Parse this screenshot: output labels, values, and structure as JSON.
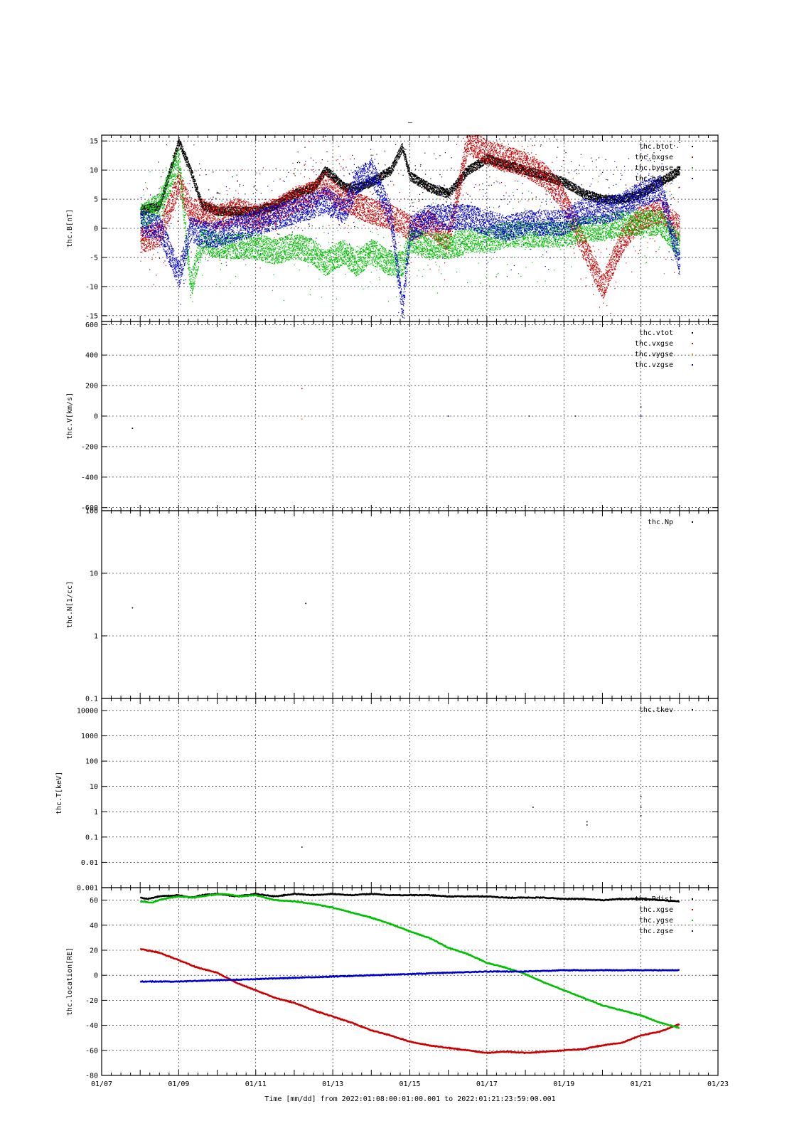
{
  "title": "–",
  "xaxis": {
    "title": "Time [mm/dd]  from 2022:01:08:00:01:00.001  to  2022:01:21:23:59:00.001",
    "tick_labels": [
      "01/07",
      "01/09",
      "01/11",
      "01/13",
      "01/15",
      "01/17",
      "01/19",
      "01/21",
      "01/23"
    ],
    "tick_days": [
      7,
      9,
      11,
      13,
      15,
      17,
      19,
      21,
      23
    ],
    "range_days": [
      7,
      23
    ],
    "data_range_days": [
      8.0,
      22.0
    ]
  },
  "colors": {
    "black": "#000000",
    "red": "#cc0000",
    "green": "#00c000",
    "blue": "#0000cc",
    "orange": "#ff8c00"
  },
  "chart_data": [
    {
      "type": "scatter",
      "ylabel": "thc.B[nT]",
      "yscale": "linear",
      "ylim": [
        -16,
        16
      ],
      "yticks": [
        -15,
        -10,
        -5,
        0,
        5,
        10,
        15
      ],
      "ytick_labels": [
        "-15",
        "-10",
        "-5",
        "0",
        "5",
        "10",
        "15"
      ],
      "legend_position": "top-right",
      "series": [
        {
          "name": "thc.btot",
          "color": "#000000",
          "x": [
            8.0,
            8.5,
            9.0,
            9.3,
            9.6,
            10.0,
            10.5,
            11.0,
            11.5,
            12.0,
            12.5,
            12.8,
            13.0,
            13.3,
            13.6,
            14.0,
            14.5,
            14.8,
            15.0,
            15.5,
            16.0,
            16.5,
            17.0,
            17.5,
            18.0,
            18.5,
            19.0,
            19.5,
            20.0,
            20.5,
            21.0,
            21.5,
            22.0
          ],
          "y": [
            3,
            4,
            15,
            10,
            4,
            3,
            3,
            3,
            4,
            6,
            7,
            10,
            9,
            7,
            7,
            8,
            10,
            14,
            9,
            7,
            6,
            10,
            12,
            11,
            10,
            9,
            8,
            6,
            5,
            5,
            6,
            8,
            10
          ]
        },
        {
          "name": "thc.bxgse",
          "color": "#cc0000",
          "x": [
            8.0,
            8.5,
            9.0,
            9.3,
            9.6,
            10.0,
            10.5,
            11.0,
            11.5,
            12.0,
            12.5,
            12.8,
            13.0,
            13.3,
            13.6,
            14.0,
            14.5,
            14.8,
            15.0,
            15.5,
            16.0,
            16.5,
            17.0,
            17.5,
            18.0,
            18.5,
            19.0,
            19.5,
            20.0,
            20.5,
            21.0,
            21.5,
            22.0
          ],
          "y": [
            -2,
            -1,
            8,
            3,
            3,
            2,
            3,
            2,
            3,
            5,
            6,
            8,
            6,
            5,
            4,
            3,
            2,
            1,
            0,
            1,
            -2,
            15,
            13,
            12,
            11,
            9,
            5,
            -3,
            -10,
            -2,
            2,
            3,
            0
          ]
        },
        {
          "name": "thc.bygse",
          "color": "#00c000",
          "x": [
            8.0,
            8.5,
            9.0,
            9.3,
            9.6,
            10.0,
            10.5,
            11.0,
            11.5,
            12.0,
            12.5,
            12.8,
            13.0,
            13.3,
            13.6,
            14.0,
            14.5,
            14.8,
            15.0,
            15.5,
            16.0,
            16.5,
            17.0,
            17.5,
            18.0,
            18.5,
            19.0,
            19.5,
            20.0,
            20.5,
            21.0,
            21.5,
            22.0
          ],
          "y": [
            2,
            4,
            12,
            -10,
            -2,
            -3,
            -3,
            -3,
            -4,
            -3,
            -4,
            -6,
            -5,
            -4,
            -6,
            -4,
            -6,
            -6,
            -2,
            -3,
            -3,
            -2,
            -2,
            -1,
            -1,
            -1,
            -1,
            0,
            0,
            1,
            1,
            1,
            -3
          ]
        },
        {
          "name": "thc.bzgse",
          "color": "#0000cc",
          "x": [
            8.0,
            8.5,
            9.0,
            9.3,
            9.6,
            10.0,
            10.5,
            11.0,
            11.5,
            12.0,
            12.5,
            12.8,
            13.0,
            13.3,
            13.6,
            14.0,
            14.5,
            14.8,
            15.0,
            15.5,
            16.0,
            16.5,
            17.0,
            17.5,
            18.0,
            18.5,
            19.0,
            19.5,
            20.0,
            20.5,
            21.0,
            21.5,
            22.0
          ],
          "y": [
            1,
            0,
            -8,
            0,
            -1,
            -1,
            0,
            1,
            2,
            3,
            4,
            5,
            4,
            3,
            8,
            10,
            2,
            -14,
            0,
            2,
            2,
            2,
            1,
            0,
            1,
            1,
            1,
            3,
            3,
            4,
            6,
            7,
            -6
          ]
        }
      ]
    },
    {
      "type": "scatter",
      "ylabel": "thc.V[km/s]",
      "yscale": "linear",
      "ylim": [
        -620,
        620
      ],
      "yticks": [
        -600,
        -400,
        -200,
        0,
        200,
        400,
        600
      ],
      "ytick_labels": [
        "-600",
        "-400",
        "-200",
        "0",
        "200",
        "400",
        "600"
      ],
      "legend_position": "top-right",
      "series": [
        {
          "name": "thc.vtot",
          "color": "#000000",
          "x": [
            7.8,
            21.0,
            21.0
          ],
          "y": [
            -80,
            0,
            60
          ]
        },
        {
          "name": "thc.vxgse",
          "color": "#cc0000",
          "x": [
            12.2
          ],
          "y": [
            180
          ]
        },
        {
          "name": "thc.vygse",
          "color": "#ff8c00",
          "x": [
            12.2
          ],
          "y": [
            -20
          ]
        },
        {
          "name": "thc.vzgse",
          "color": "#0000cc",
          "x": [
            16.0,
            18.1,
            19.3,
            21.0
          ],
          "y": [
            0,
            0,
            0,
            0
          ]
        }
      ]
    },
    {
      "type": "scatter",
      "ylabel": "thc.N[1/cc]",
      "yscale": "log",
      "ylim": [
        0.1,
        100
      ],
      "yticks": [
        0.1,
        1,
        10,
        100
      ],
      "ytick_labels": [
        "0.1",
        "1",
        "10",
        "100"
      ],
      "legend_position": "top-right",
      "series": [
        {
          "name": "thc.Np",
          "color": "#000000",
          "x": [
            7.8,
            12.3
          ],
          "y": [
            2.8,
            3.3
          ]
        }
      ]
    },
    {
      "type": "scatter",
      "ylabel": "thc.T[keV]",
      "yscale": "log",
      "ylim": [
        0.001,
        30000
      ],
      "yticks": [
        0.001,
        0.01,
        0.1,
        1,
        10,
        100,
        1000,
        10000
      ],
      "ytick_labels": [
        "0.001",
        "0.01",
        "0.1",
        "1",
        "10",
        "100",
        "1000",
        "10000"
      ],
      "legend_position": "top-right",
      "series": [
        {
          "name": "thc.tkev",
          "color": "#000000",
          "x": [
            12.2,
            18.2,
            19.6,
            19.6,
            21.0,
            21.0,
            21.0
          ],
          "y": [
            0.04,
            1.5,
            0.3,
            0.4,
            4,
            1.5,
            0.7
          ]
        }
      ]
    },
    {
      "type": "line",
      "ylabel": "thc.location[RE]",
      "yscale": "linear",
      "ylim": [
        -80,
        70
      ],
      "yticks": [
        -80,
        -60,
        -40,
        -20,
        0,
        20,
        40,
        60
      ],
      "ytick_labels": [
        "-80",
        "-60",
        "-40",
        "-20",
        "0",
        "20",
        "40",
        "60"
      ],
      "legend_position": "top-right",
      "series": [
        {
          "name": "thc.Rdist",
          "color": "#000000",
          "x": [
            8.0,
            8.2,
            8.5,
            9.0,
            9.3,
            9.6,
            10.0,
            10.5,
            11.0,
            11.5,
            12.0,
            12.5,
            13.0,
            13.5,
            14.0,
            14.5,
            15.0,
            15.5,
            16.0,
            16.5,
            17.0,
            17.5,
            18.0,
            18.5,
            19.0,
            19.5,
            20.0,
            20.5,
            21.0,
            21.5,
            22.0
          ],
          "y": [
            62,
            61,
            63,
            64,
            62,
            64,
            65,
            63,
            65,
            63,
            65,
            64,
            65,
            64,
            65,
            64,
            64,
            64,
            63,
            63,
            63,
            62,
            62,
            62,
            61,
            61,
            60,
            61,
            61,
            60,
            59
          ]
        },
        {
          "name": "thc.xgse",
          "color": "#cc0000",
          "x": [
            8.0,
            8.5,
            9.0,
            9.5,
            10.0,
            10.5,
            11.0,
            11.5,
            12.0,
            12.5,
            13.0,
            13.5,
            14.0,
            14.5,
            15.0,
            15.5,
            16.0,
            16.5,
            17.0,
            17.5,
            18.0,
            18.5,
            19.0,
            19.5,
            20.0,
            20.5,
            21.0,
            21.5,
            22.0
          ],
          "y": [
            21,
            18,
            12,
            6,
            2,
            -6,
            -12,
            -18,
            -22,
            -28,
            -33,
            -38,
            -44,
            -48,
            -53,
            -56,
            -58,
            -60,
            -62,
            -61,
            -62,
            -61,
            -60,
            -59,
            -56,
            -54,
            -48,
            -45,
            -39
          ]
        },
        {
          "name": "thc.ygse",
          "color": "#00c000",
          "x": [
            8.0,
            8.3,
            8.6,
            9.0,
            9.4,
            9.8,
            10.2,
            10.6,
            11.0,
            11.5,
            12.0,
            12.5,
            13.0,
            13.5,
            14.0,
            14.5,
            15.0,
            15.5,
            16.0,
            16.5,
            17.0,
            17.5,
            18.0,
            18.5,
            19.0,
            19.5,
            20.0,
            20.5,
            21.0,
            21.5,
            22.0
          ],
          "y": [
            59,
            58,
            61,
            63,
            62,
            64,
            65,
            63,
            64,
            60,
            59,
            57,
            54,
            50,
            46,
            41,
            35,
            30,
            22,
            17,
            10,
            6,
            1,
            -6,
            -12,
            -18,
            -24,
            -28,
            -32,
            -38,
            -42
          ]
        },
        {
          "name": "thc.zgse",
          "color": "#0000cc",
          "x": [
            8.0,
            9.0,
            10.0,
            11.0,
            12.0,
            13.0,
            14.0,
            15.0,
            16.0,
            17.0,
            18.0,
            19.0,
            20.0,
            21.0,
            22.0
          ],
          "y": [
            -5,
            -5,
            -4,
            -3,
            -2,
            -1,
            0,
            1,
            2,
            3,
            3,
            4,
            4,
            4,
            4
          ]
        }
      ]
    }
  ]
}
